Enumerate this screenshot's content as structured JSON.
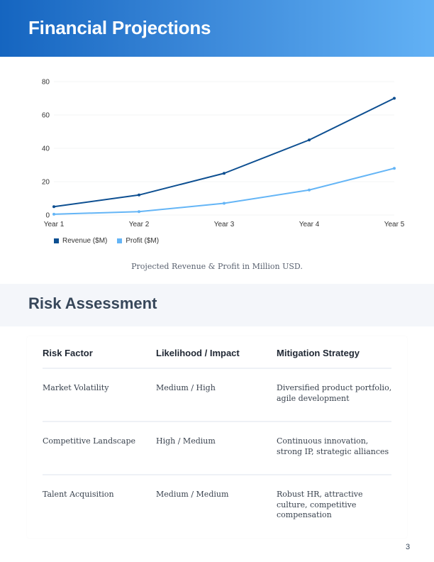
{
  "header": {
    "title": "Financial Projections"
  },
  "chart_data": {
    "type": "line",
    "title": "",
    "caption": "Projected Revenue & Profit in Million USD.",
    "xlabel": "",
    "ylabel": "",
    "categories": [
      "Year 1",
      "Year 2",
      "Year 3",
      "Year 4",
      "Year 5"
    ],
    "yticks": [
      "0",
      "20",
      "40",
      "60",
      "80"
    ],
    "ylim": [
      0,
      80
    ],
    "grid": true,
    "legend_position": "bottom-left",
    "series": [
      {
        "name": "Revenue ($M)",
        "color": "#0d4f91",
        "values": [
          5,
          12,
          25,
          45,
          70
        ]
      },
      {
        "name": "Profit ($M)",
        "color": "#64b5f6",
        "values": [
          0.5,
          2,
          7,
          15,
          28
        ]
      }
    ]
  },
  "legend": {
    "items": [
      {
        "label": "Revenue ($M)",
        "color": "#0d4f91"
      },
      {
        "label": "Profit ($M)",
        "color": "#64b5f6"
      }
    ]
  },
  "caption": "Projected Revenue & Profit in Million USD.",
  "risk_section": {
    "title": "Risk Assessment",
    "columns": [
      "Risk Factor",
      "Likelihood / Impact",
      "Mitigation Strategy"
    ],
    "rows": [
      {
        "factor": "Market Volatility",
        "likelihood_impact": "Medium / High",
        "mitigation": "Diversified product portfolio, agile development"
      },
      {
        "factor": "Competitive Landscape",
        "likelihood_impact": "High / Medium",
        "mitigation": "Continuous innovation, strong IP, strategic alliances"
      },
      {
        "factor": "Talent Acquisition",
        "likelihood_impact": "Medium / Medium",
        "mitigation": "Robust HR, attractive culture, competitive compensation"
      }
    ]
  },
  "footer": {
    "page_number": "3"
  },
  "colors": {
    "header_gradient_start": "#1565c0",
    "header_gradient_end": "#62b1f5",
    "section_band": "#f4f6fa",
    "heading_text": "#37475a"
  }
}
